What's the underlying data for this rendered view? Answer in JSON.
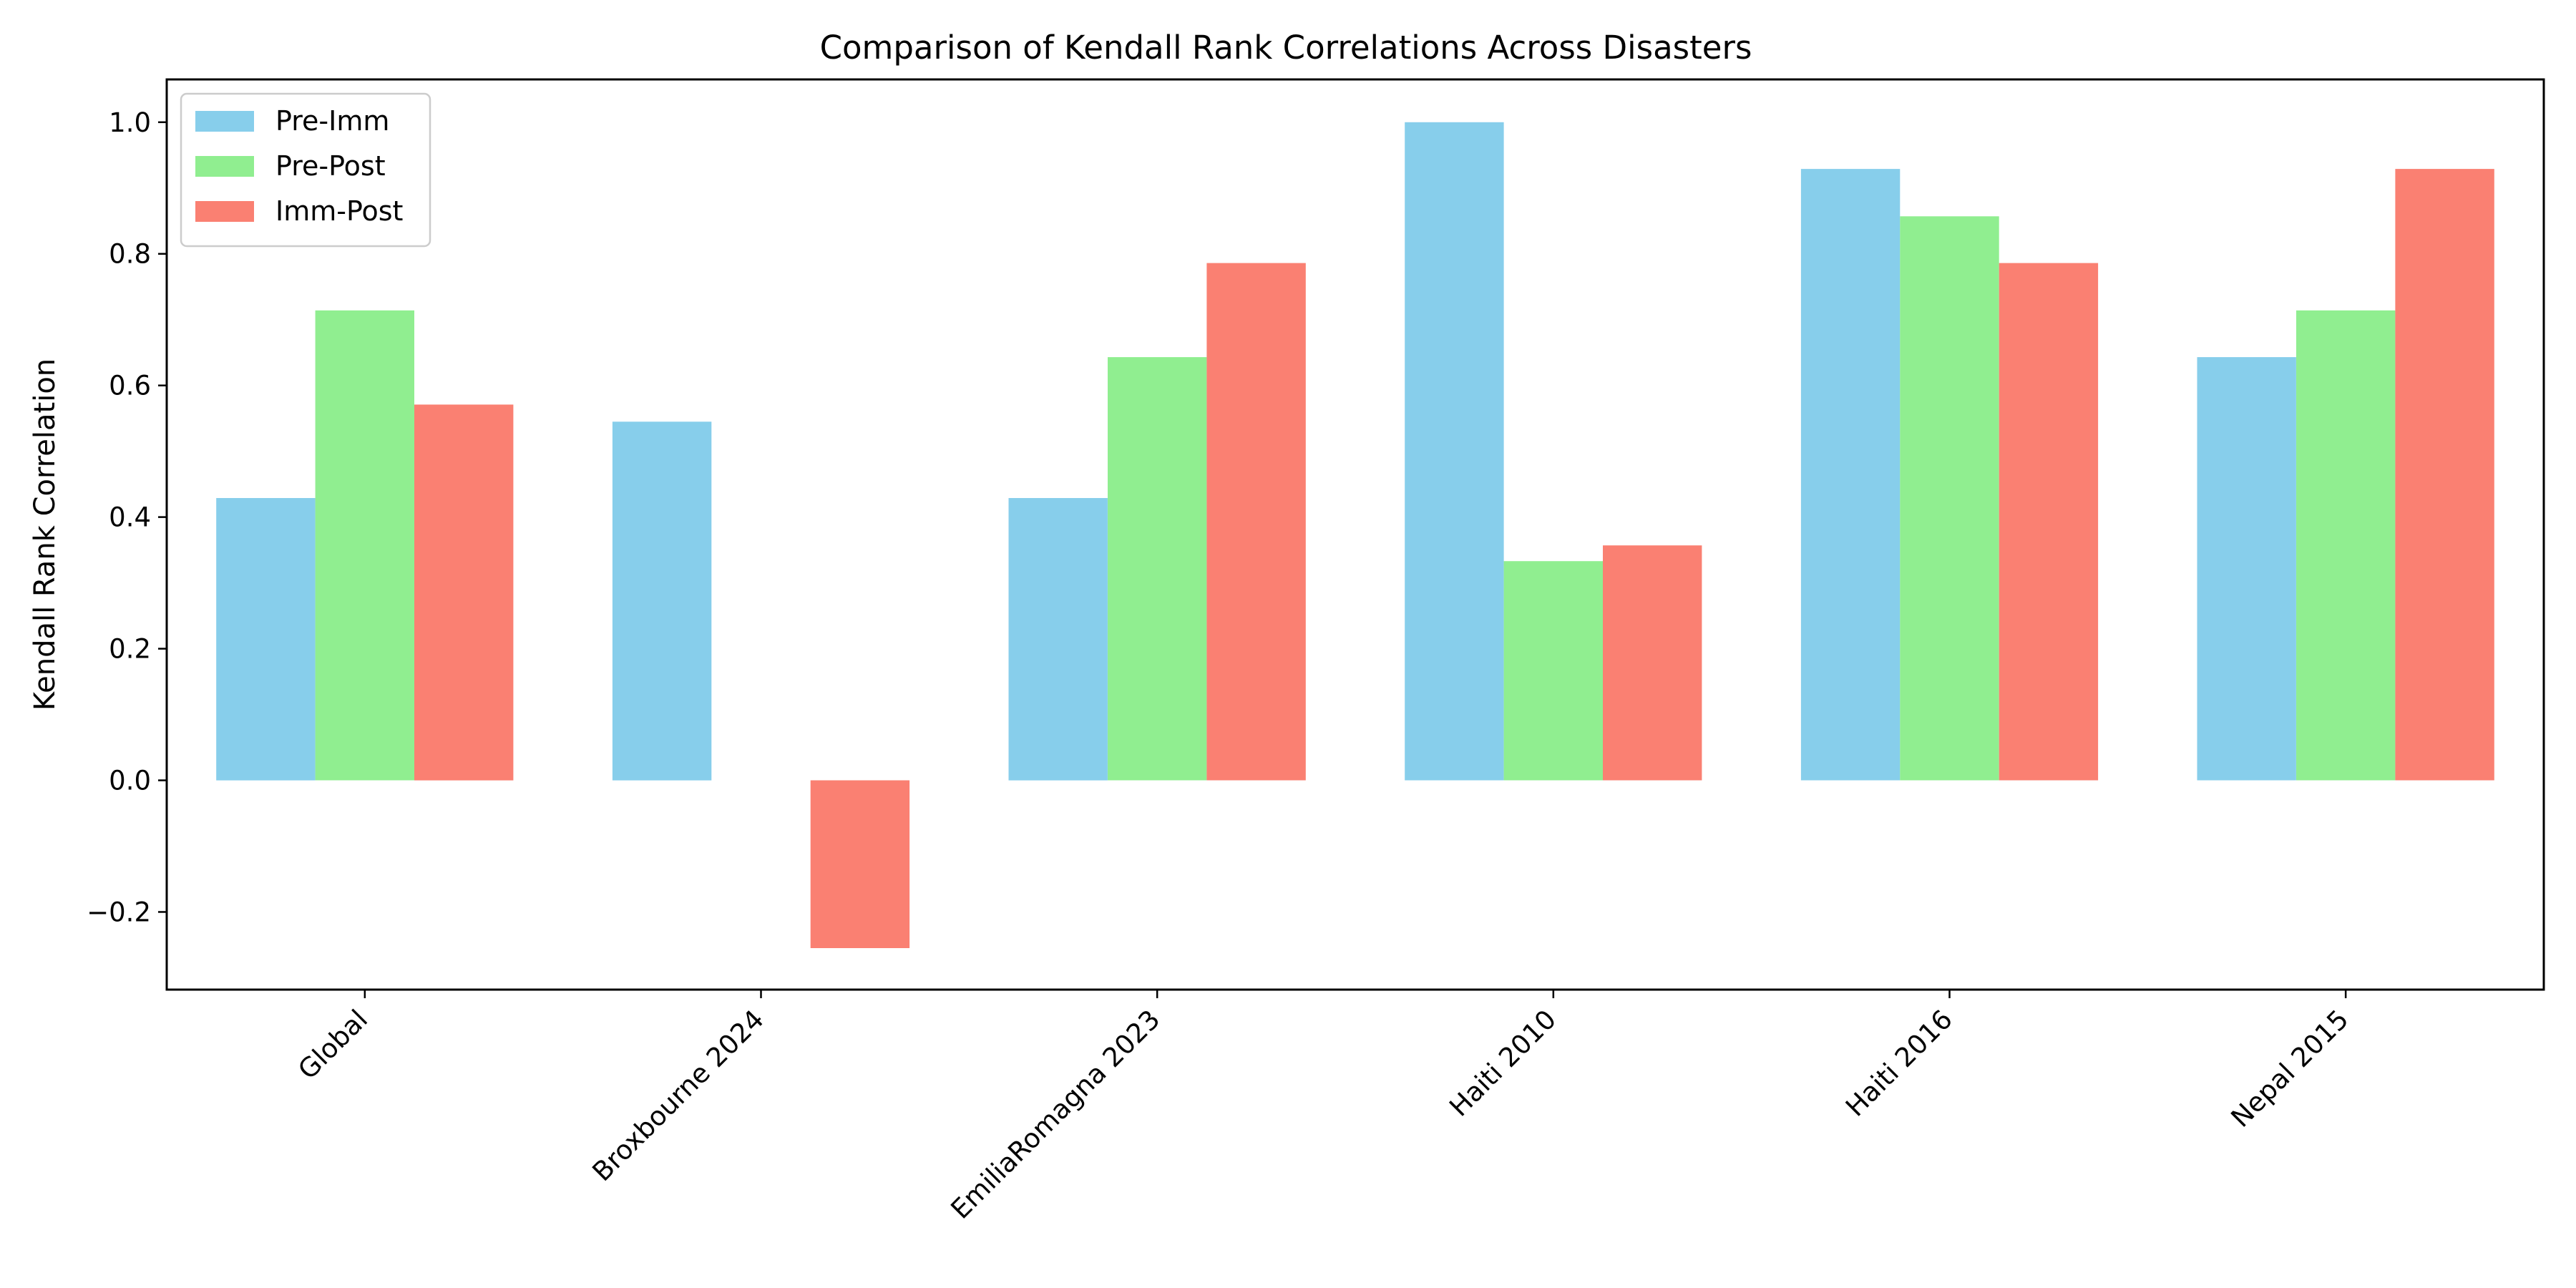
{
  "chart_data": {
    "type": "bar",
    "title": "Comparison of Kendall Rank Correlations Across Disasters",
    "xlabel": "",
    "ylabel": "Kendall Rank Correlation",
    "categories": [
      "Global",
      "Broxbourne 2024",
      "EmiliaRomagna 2023",
      "Haiti 2010",
      "Haiti 2016",
      "Nepal 2015"
    ],
    "series": [
      {
        "name": "Pre-Imm",
        "color": "#87ceeb",
        "values": [
          0.429,
          0.545,
          0.429,
          1.0,
          0.929,
          0.643
        ]
      },
      {
        "name": "Pre-Post",
        "color": "#90ee90",
        "values": [
          0.714,
          null,
          0.643,
          0.333,
          0.857,
          0.714
        ]
      },
      {
        "name": "Imm-Post",
        "color": "#fa8072",
        "values": [
          0.571,
          -0.255,
          0.786,
          0.357,
          0.786,
          0.929
        ]
      }
    ],
    "ylim": [
      -0.318,
      1.065
    ],
    "yticks": [
      -0.2,
      0.0,
      0.2,
      0.4,
      0.6,
      0.8,
      1.0
    ],
    "ytick_labels": [
      "−0.2",
      "0.0",
      "0.2",
      "0.4",
      "0.6",
      "0.8",
      "1.0"
    ],
    "legend_position": "top-left",
    "grid": false
  }
}
